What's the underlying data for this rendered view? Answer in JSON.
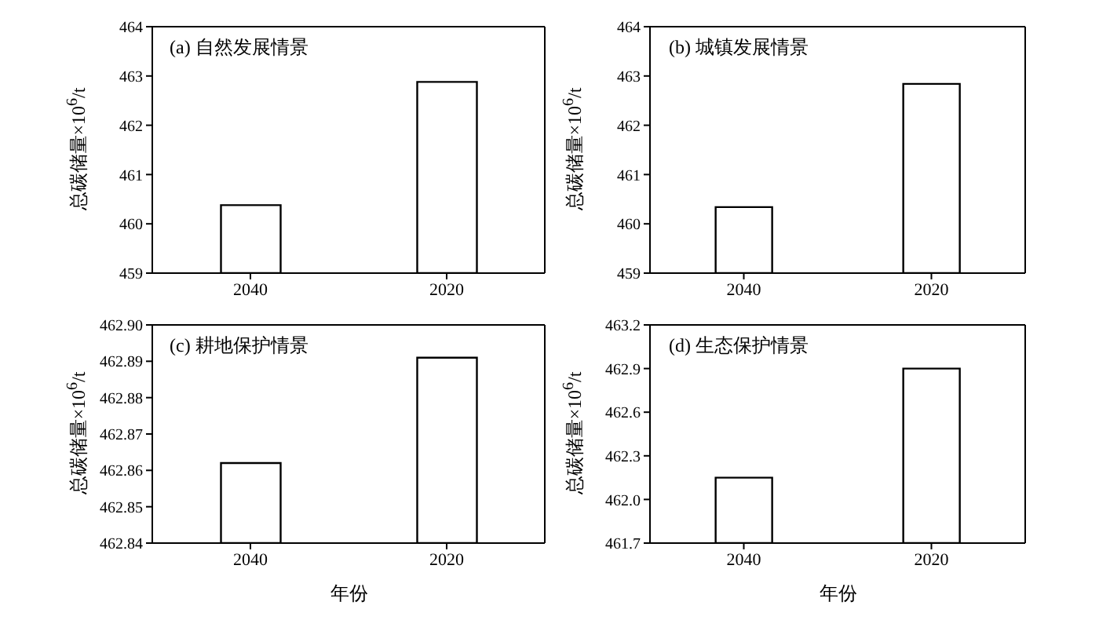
{
  "chart_data": [
    {
      "type": "bar",
      "title": "(a) 自然发展情景",
      "ylabel": "总碳储量×10$^{6}$/t",
      "categories": [
        "2040",
        "2020"
      ],
      "values": [
        460.38,
        462.88
      ],
      "color": "#ffffff",
      "ylim": [
        459,
        464
      ],
      "yticks": [
        459,
        460,
        461,
        462,
        463,
        464
      ],
      "grid": false,
      "legend": false
    },
    {
      "type": "bar",
      "title": "(b) 城镇发展情景",
      "ylabel": "总碳储量×10$^{6}$/t",
      "categories": [
        "2040",
        "2020"
      ],
      "values": [
        460.34,
        462.84
      ],
      "color": "#ffffff",
      "ylim": [
        459,
        464
      ],
      "yticks": [
        459,
        460,
        461,
        462,
        463,
        464
      ],
      "grid": false,
      "legend": false
    },
    {
      "type": "bar",
      "title": "(c) 耕地保护情景",
      "ylabel": "总碳储量×10$^{6}$/t",
      "xlabel": "年份",
      "categories": [
        "2040",
        "2020"
      ],
      "values": [
        462.862,
        462.891
      ],
      "color": "#ffffff",
      "ylim": [
        462.84,
        462.9
      ],
      "yticks": [
        {
          "value": 462.84,
          "label": "462.84"
        },
        {
          "value": 462.85,
          "label": "462.85"
        },
        {
          "value": 462.86,
          "label": "462.86"
        },
        {
          "value": 462.87,
          "label": "462.87"
        },
        {
          "value": 462.88,
          "label": "462.88"
        },
        {
          "value": 462.89,
          "label": "462.89"
        },
        {
          "value": 462.9,
          "label": "462.90"
        }
      ],
      "grid": false,
      "legend": false
    },
    {
      "type": "bar",
      "title": "(d) 生态保护情景",
      "ylabel": "总碳储量×10$^{6}$/t",
      "xlabel": "年份",
      "categories": [
        "2040",
        "2020"
      ],
      "values": [
        462.15,
        462.9
      ],
      "color": "#ffffff",
      "ylim": [
        461.7,
        463.2
      ],
      "yticks": [
        {
          "value": 461.7,
          "label": "461.7"
        },
        {
          "value": 462.0,
          "label": "462.0"
        },
        {
          "value": 462.3,
          "label": "462.3"
        },
        {
          "value": 462.6,
          "label": "462.6"
        },
        {
          "value": 462.9,
          "label": "462.9"
        },
        {
          "value": 463.2,
          "label": "463.2"
        }
      ],
      "grid": false,
      "legend": false
    }
  ]
}
